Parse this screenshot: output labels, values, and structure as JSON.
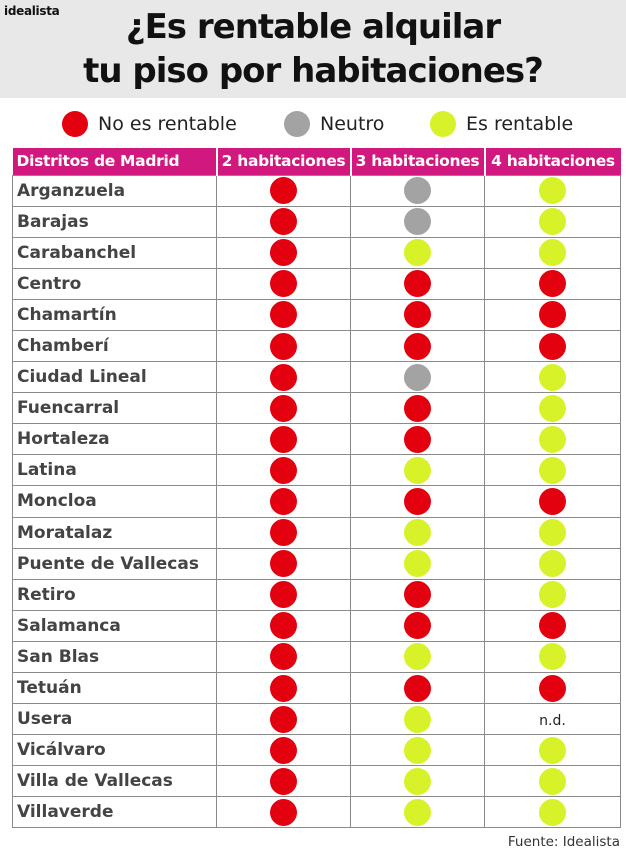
{
  "brand": "idealista",
  "title_line1": "¿Es rentable alquilar",
  "title_line2": "tu piso por habitaciones?",
  "legend": [
    {
      "key": "no",
      "label": "No es rentable",
      "color": "#e3000f"
    },
    {
      "key": "neutro",
      "label": "Neutro",
      "color": "#a3a3a3"
    },
    {
      "key": "si",
      "label": "Es rentable",
      "color": "#d8f22a"
    }
  ],
  "source": "Fuente: Idealista",
  "chart_data": {
    "type": "table",
    "columns": [
      "Distritos de Madrid",
      "2 habitaciones",
      "3 habitaciones",
      "4 habitaciones"
    ],
    "nd_label": "n.d.",
    "rows": [
      {
        "district": "Arganzuela",
        "values": [
          "no",
          "neutro",
          "si"
        ]
      },
      {
        "district": "Barajas",
        "values": [
          "no",
          "neutro",
          "si"
        ]
      },
      {
        "district": "Carabanchel",
        "values": [
          "no",
          "si",
          "si"
        ]
      },
      {
        "district": "Centro",
        "values": [
          "no",
          "no",
          "no"
        ]
      },
      {
        "district": "Chamartín",
        "values": [
          "no",
          "no",
          "no"
        ]
      },
      {
        "district": "Chamberí",
        "values": [
          "no",
          "no",
          "no"
        ]
      },
      {
        "district": "Ciudad Lineal",
        "values": [
          "no",
          "neutro",
          "si"
        ]
      },
      {
        "district": "Fuencarral",
        "values": [
          "no",
          "no",
          "si"
        ]
      },
      {
        "district": "Hortaleza",
        "values": [
          "no",
          "no",
          "si"
        ]
      },
      {
        "district": "Latina",
        "values": [
          "no",
          "si",
          "si"
        ]
      },
      {
        "district": "Moncloa",
        "values": [
          "no",
          "no",
          "no"
        ]
      },
      {
        "district": "Moratalaz",
        "values": [
          "no",
          "si",
          "si"
        ]
      },
      {
        "district": "Puente de Vallecas",
        "values": [
          "no",
          "si",
          "si"
        ]
      },
      {
        "district": "Retiro",
        "values": [
          "no",
          "no",
          "si"
        ]
      },
      {
        "district": "Salamanca",
        "values": [
          "no",
          "no",
          "no"
        ]
      },
      {
        "district": "San Blas",
        "values": [
          "no",
          "si",
          "si"
        ]
      },
      {
        "district": "Tetuán",
        "values": [
          "no",
          "no",
          "no"
        ]
      },
      {
        "district": "Usera",
        "values": [
          "no",
          "si",
          "nd"
        ]
      },
      {
        "district": "Vicálvaro",
        "values": [
          "no",
          "si",
          "si"
        ]
      },
      {
        "district": "Villa de Vallecas",
        "values": [
          "no",
          "si",
          "si"
        ]
      },
      {
        "district": "Villaverde",
        "values": [
          "no",
          "si",
          "si"
        ]
      }
    ]
  }
}
